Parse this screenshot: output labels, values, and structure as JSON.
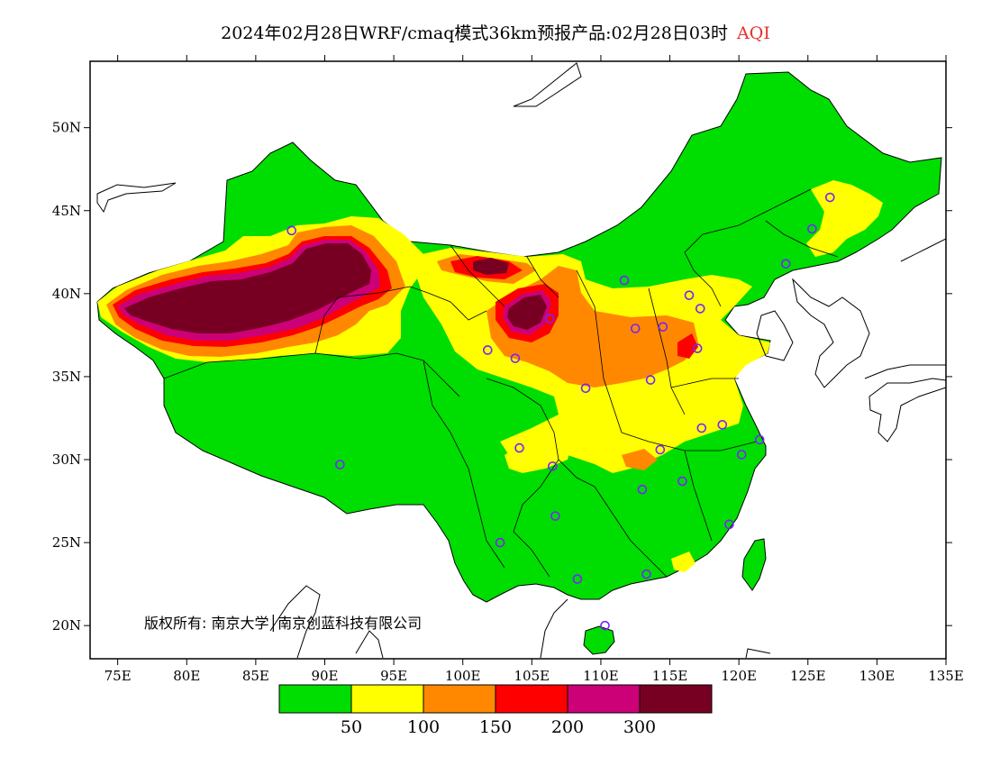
{
  "title": {
    "main": "2024年02月28日WRF/cmaq模式36km预报产品:02月28日03时",
    "variable": "AQI",
    "variable_color": "#e8302a"
  },
  "axes": {
    "lat_labels": [
      "50N",
      "45N",
      "40N",
      "35N",
      "30N",
      "25N",
      "20N"
    ],
    "lat_values": [
      50,
      45,
      40,
      35,
      30,
      25,
      20
    ],
    "lon_labels": [
      "75E",
      "80E",
      "85E",
      "90E",
      "95E",
      "100E",
      "105E",
      "110E",
      "115E",
      "120E",
      "125E",
      "130E",
      "135E"
    ],
    "lon_values": [
      75,
      80,
      85,
      90,
      95,
      100,
      105,
      110,
      115,
      120,
      125,
      130,
      135
    ],
    "lon_range": [
      73,
      135
    ],
    "lat_range": [
      18,
      54
    ]
  },
  "copyright": "版权所有: 南京大学│南京创蓝科技有限公司",
  "legend": {
    "colors": [
      "#00dd00",
      "#ffff00",
      "#ff8800",
      "#ff0000",
      "#cc0077",
      "#770022"
    ],
    "labels": [
      "50",
      "100",
      "150",
      "200",
      "300"
    ]
  },
  "stations": [
    {
      "lon": 87.6,
      "lat": 43.8
    },
    {
      "lon": 91.1,
      "lat": 29.7
    },
    {
      "lon": 101.8,
      "lat": 36.6
    },
    {
      "lon": 103.8,
      "lat": 36.1
    },
    {
      "lon": 106.3,
      "lat": 38.5
    },
    {
      "lon": 111.7,
      "lat": 40.8
    },
    {
      "lon": 108.9,
      "lat": 34.3
    },
    {
      "lon": 112.5,
      "lat": 37.9
    },
    {
      "lon": 114.5,
      "lat": 38.0
    },
    {
      "lon": 116.4,
      "lat": 39.9
    },
    {
      "lon": 117.2,
      "lat": 39.1
    },
    {
      "lon": 117.0,
      "lat": 36.7
    },
    {
      "lon": 113.6,
      "lat": 34.8
    },
    {
      "lon": 117.3,
      "lat": 31.9
    },
    {
      "lon": 118.8,
      "lat": 32.1
    },
    {
      "lon": 120.2,
      "lat": 30.3
    },
    {
      "lon": 121.5,
      "lat": 31.2
    },
    {
      "lon": 114.3,
      "lat": 30.6
    },
    {
      "lon": 115.9,
      "lat": 28.7
    },
    {
      "lon": 113.0,
      "lat": 28.2
    },
    {
      "lon": 106.5,
      "lat": 29.6
    },
    {
      "lon": 104.1,
      "lat": 30.7
    },
    {
      "lon": 106.7,
      "lat": 26.6
    },
    {
      "lon": 102.7,
      "lat": 25.0
    },
    {
      "lon": 108.3,
      "lat": 22.8
    },
    {
      "lon": 113.3,
      "lat": 23.1
    },
    {
      "lon": 110.3,
      "lat": 20.0
    },
    {
      "lon": 119.3,
      "lat": 26.1
    },
    {
      "lon": 123.4,
      "lat": 41.8
    },
    {
      "lon": 125.3,
      "lat": 43.9
    },
    {
      "lon": 126.6,
      "lat": 45.8
    }
  ]
}
